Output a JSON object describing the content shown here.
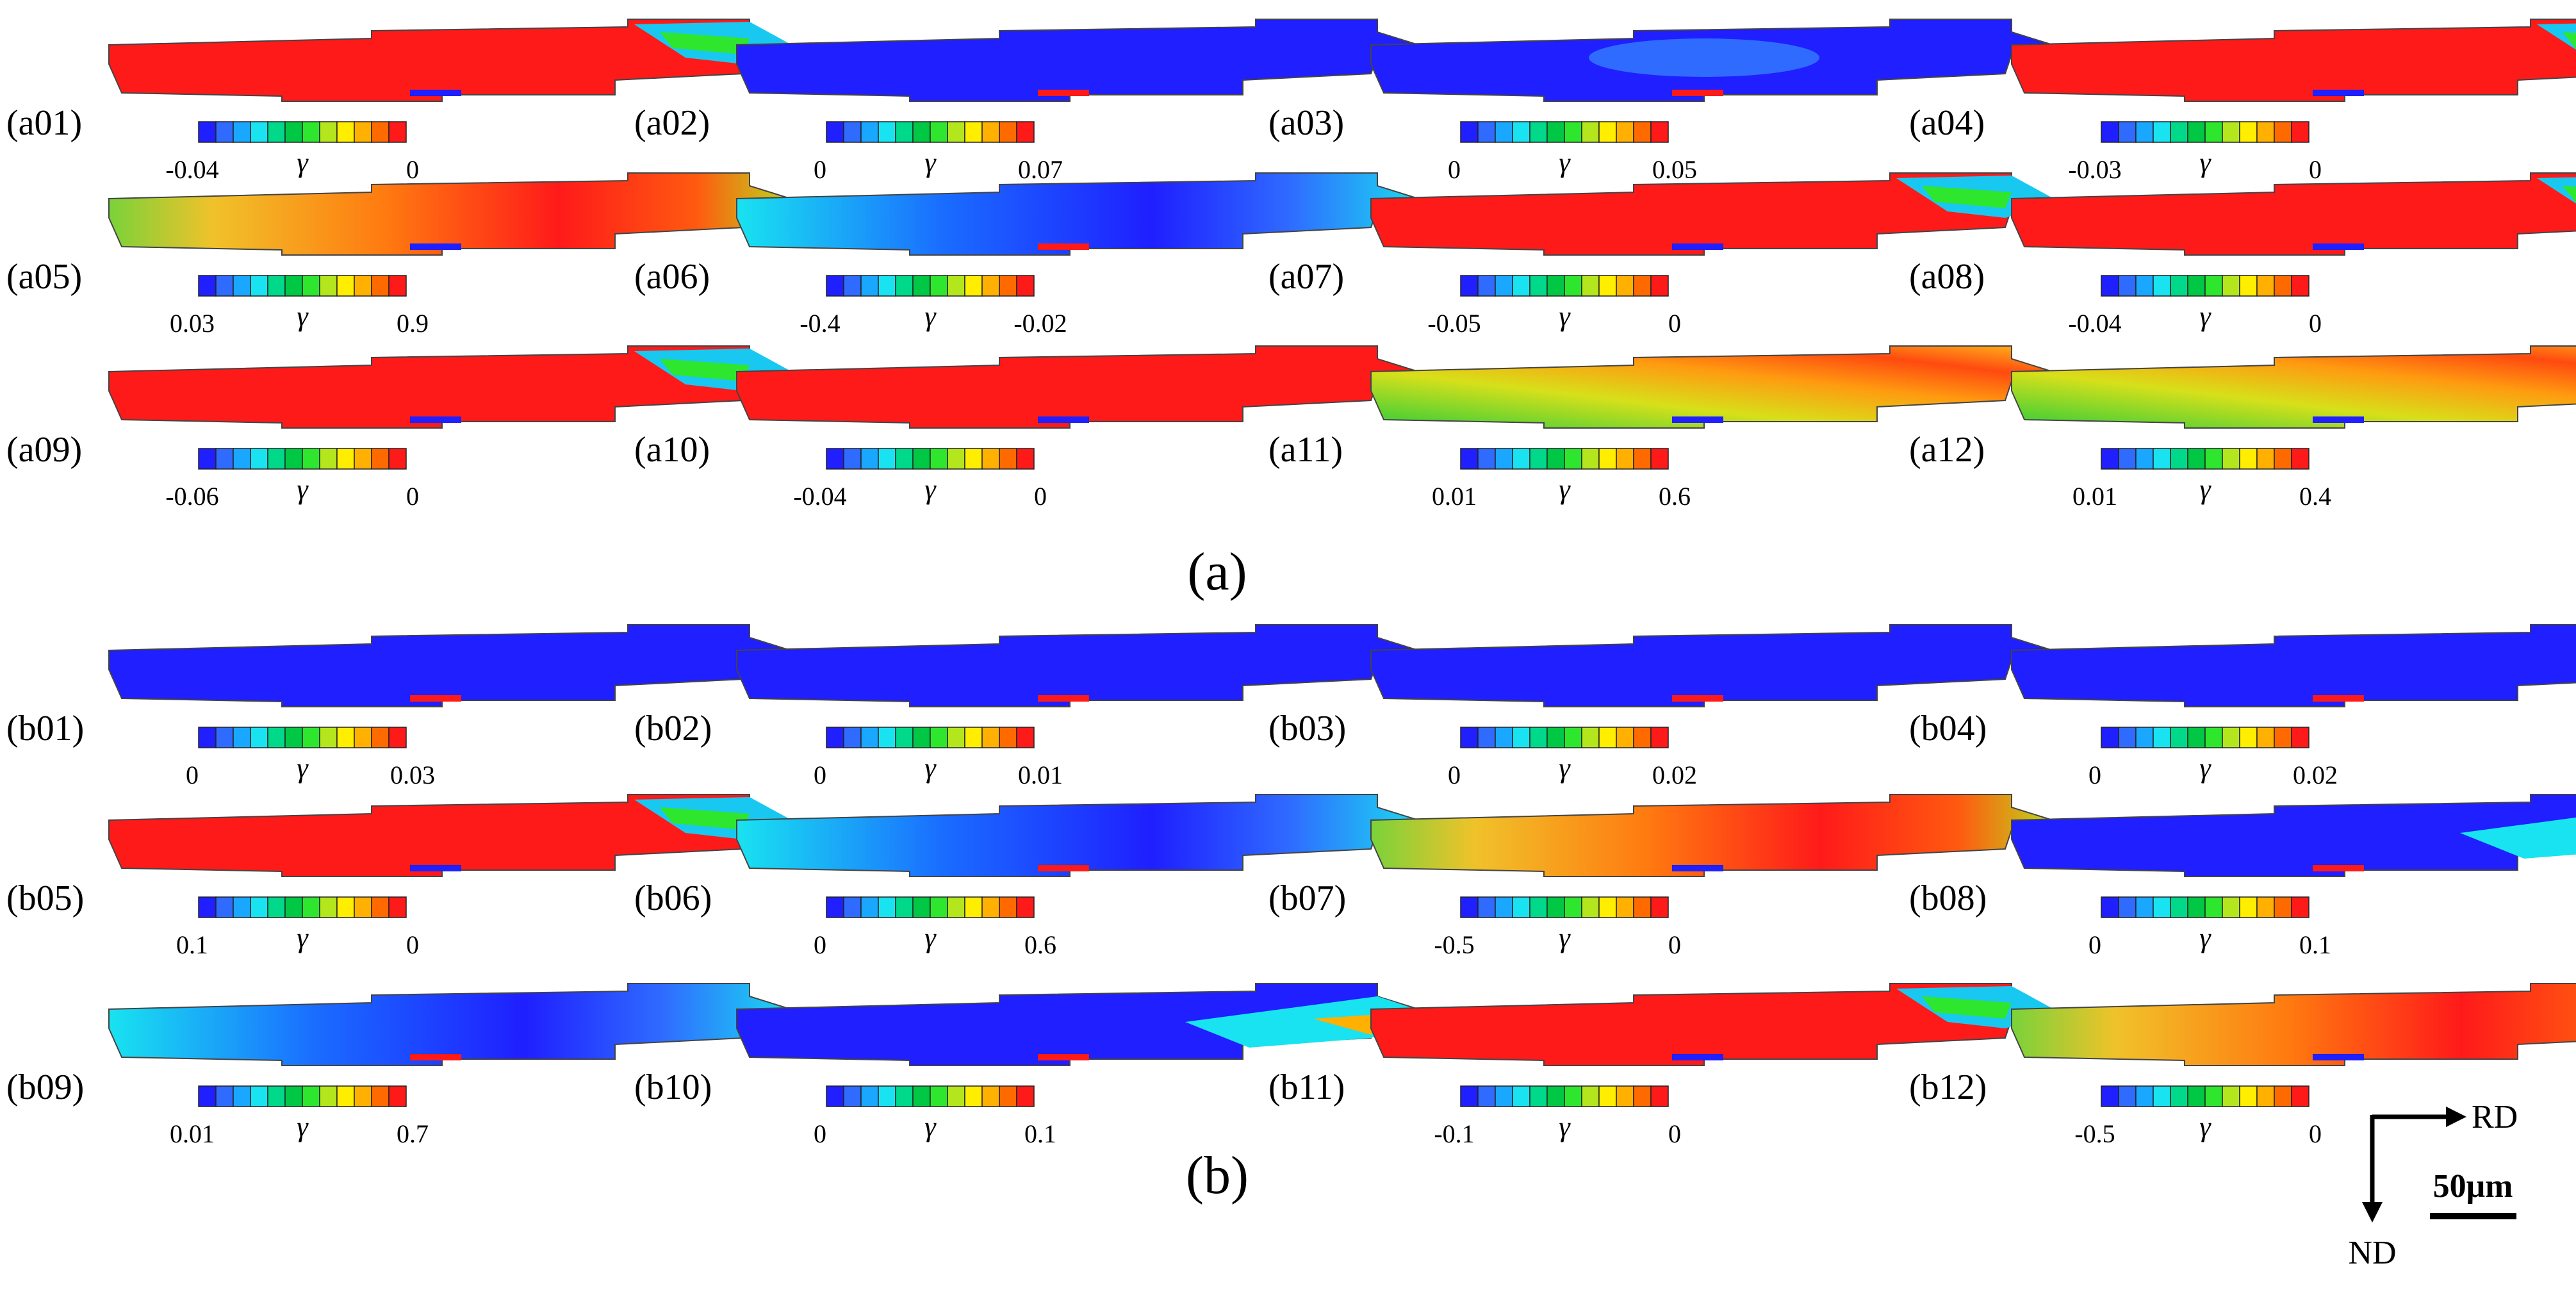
{
  "palette": [
    "#1f1fff",
    "#2f6bff",
    "#1aa7ff",
    "#19e3f0",
    "#00d98a",
    "#00c845",
    "#2ee62e",
    "#b4e61e",
    "#ffee00",
    "#ffb000",
    "#ff6a00",
    "#ff1a1a"
  ],
  "variable_symbol": "γ",
  "group_captions": [
    "(a)",
    "(b)"
  ],
  "panels": [
    {
      "id": "(a01)",
      "min": "-0.04",
      "max": "0",
      "pattern": "red_tail"
    },
    {
      "id": "(a02)",
      "min": "0",
      "max": "0.07",
      "pattern": "blue"
    },
    {
      "id": "(a03)",
      "min": "0",
      "max": "0.05",
      "pattern": "blue_light"
    },
    {
      "id": "(a04)",
      "min": "-0.03",
      "max": "0",
      "pattern": "red_tail"
    },
    {
      "id": "(a05)",
      "min": "0.03",
      "max": "0.9",
      "pattern": "red_mix"
    },
    {
      "id": "(a06)",
      "min": "-0.4",
      "max": "-0.02",
      "pattern": "blue_mix"
    },
    {
      "id": "(a07)",
      "min": "-0.05",
      "max": "0",
      "pattern": "red_tail"
    },
    {
      "id": "(a08)",
      "min": "-0.04",
      "max": "0",
      "pattern": "red_tail"
    },
    {
      "id": "(a09)",
      "min": "-0.06",
      "max": "0",
      "pattern": "red_tail"
    },
    {
      "id": "(a10)",
      "min": "-0.04",
      "max": "0",
      "pattern": "red"
    },
    {
      "id": "(a11)",
      "min": "0.01",
      "max": "0.6",
      "pattern": "orange_green"
    },
    {
      "id": "(a12)",
      "min": "0.01",
      "max": "0.4",
      "pattern": "orange_green"
    },
    {
      "id": "(b01)",
      "min": "0",
      "max": "0.03",
      "pattern": "blue"
    },
    {
      "id": "(b02)",
      "min": "0",
      "max": "0.01",
      "pattern": "blue"
    },
    {
      "id": "(b03)",
      "min": "0",
      "max": "0.02",
      "pattern": "blue"
    },
    {
      "id": "(b04)",
      "min": "0",
      "max": "0.02",
      "pattern": "blue"
    },
    {
      "id": "(b05)",
      "min": "0.1",
      "max": "0",
      "pattern": "red_tail"
    },
    {
      "id": "(b06)",
      "min": "0",
      "max": "0.6",
      "pattern": "blue_mix"
    },
    {
      "id": "(b07)",
      "min": "-0.5",
      "max": "0",
      "pattern": "red_mix"
    },
    {
      "id": "(b08)",
      "min": "0",
      "max": "0.1",
      "pattern": "blue_tail"
    },
    {
      "id": "(b09)",
      "min": "0.01",
      "max": "0.7",
      "pattern": "blue_mix"
    },
    {
      "id": "(b10)",
      "min": "0",
      "max": "0.1",
      "pattern": "blue_tail"
    },
    {
      "id": "(b11)",
      "min": "-0.1",
      "max": "0",
      "pattern": "red_tail"
    },
    {
      "id": "(b12)",
      "min": "-0.5",
      "max": "0",
      "pattern": "red_mix"
    }
  ],
  "axes": {
    "horizontal": "RD",
    "vertical": "ND"
  },
  "scale_bar": {
    "label": "50μm"
  }
}
